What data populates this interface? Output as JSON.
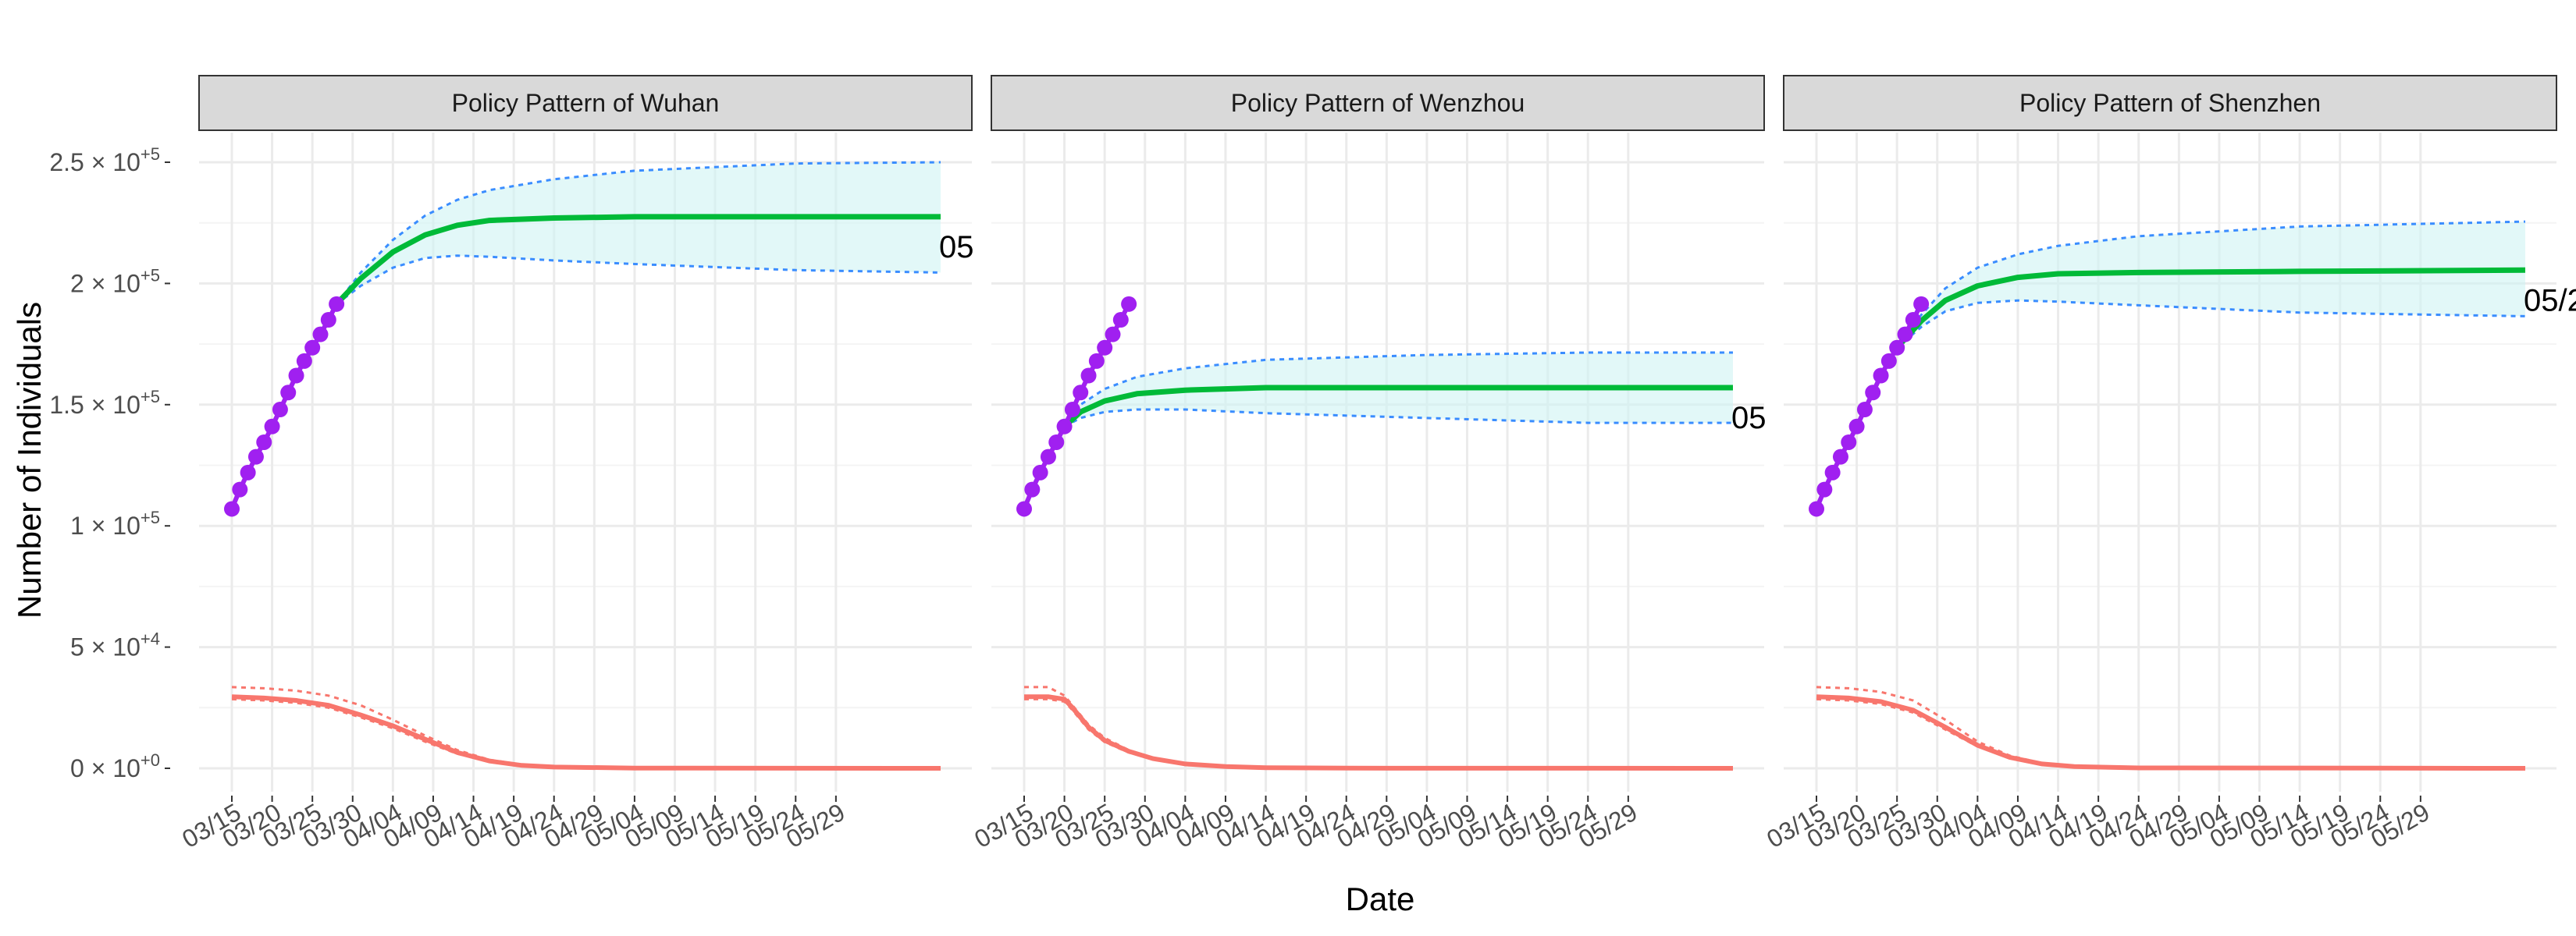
{
  "chart_data": {
    "type": "line",
    "xlabel": "Date",
    "ylabel": "Number of Individuals",
    "ylim": [
      0,
      250000
    ],
    "y_ticks": [
      0,
      50000,
      100000,
      150000,
      200000,
      250000
    ],
    "y_tick_labels": [
      {
        "mant": "0",
        "exp": "+0"
      },
      {
        "mant": "5",
        "exp": "+4"
      },
      {
        "mant": "1",
        "exp": "+5"
      },
      {
        "mant": "1.5",
        "exp": "+5"
      },
      {
        "mant": "2",
        "exp": "+5"
      },
      {
        "mant": "2.5",
        "exp": "+5"
      }
    ],
    "x_tick_labels": [
      "03/15",
      "03/20",
      "03/25",
      "03/30",
      "04/04",
      "04/09",
      "04/14",
      "04/19",
      "04/24",
      "04/29",
      "05/04",
      "05/09",
      "05/14",
      "05/19",
      "05/24",
      "05/29"
    ],
    "colors": {
      "observed": "#A020F0",
      "predicted": "#00BA38",
      "band_fill": "#CFF4F4",
      "band_line": "#3A8DFF",
      "active": "#F8766D",
      "strip_bg": "#D9D9D9",
      "grid": "#EBEBEB"
    },
    "panels": [
      {
        "title": "Policy Pattern of Wuhan",
        "end_label": "05",
        "observed": [
          [
            0,
            107000
          ],
          [
            1,
            115000
          ],
          [
            2,
            122000
          ],
          [
            3,
            128500
          ],
          [
            4,
            134500
          ],
          [
            5,
            141000
          ],
          [
            6,
            148000
          ],
          [
            7,
            155000
          ],
          [
            8,
            162000
          ],
          [
            9,
            168000
          ],
          [
            10,
            173500
          ],
          [
            11,
            179000
          ],
          [
            12,
            185000
          ],
          [
            13,
            191500
          ]
        ],
        "predicted": [
          [
            13,
            191500
          ],
          [
            16,
            202000
          ],
          [
            20,
            213000
          ],
          [
            24,
            220000
          ],
          [
            28,
            224000
          ],
          [
            32,
            226000
          ],
          [
            40,
            227000
          ],
          [
            50,
            227500
          ],
          [
            70,
            227500
          ],
          [
            88,
            227500
          ]
        ],
        "upper": [
          [
            13,
            191500
          ],
          [
            16,
            204500
          ],
          [
            20,
            218000
          ],
          [
            24,
            228000
          ],
          [
            28,
            234500
          ],
          [
            32,
            238500
          ],
          [
            40,
            243000
          ],
          [
            50,
            246500
          ],
          [
            70,
            249500
          ],
          [
            88,
            250000
          ]
        ],
        "lower": [
          [
            13,
            191500
          ],
          [
            16,
            199000
          ],
          [
            20,
            206500
          ],
          [
            24,
            210500
          ],
          [
            28,
            211500
          ],
          [
            32,
            211000
          ],
          [
            40,
            209500
          ],
          [
            50,
            208000
          ],
          [
            70,
            205500
          ],
          [
            88,
            204500
          ]
        ],
        "active": [
          [
            0,
            29500
          ],
          [
            4,
            29000
          ],
          [
            8,
            28000
          ],
          [
            12,
            26000
          ],
          [
            16,
            22000
          ],
          [
            20,
            17500
          ],
          [
            24,
            12000
          ],
          [
            28,
            6500
          ],
          [
            32,
            3000
          ],
          [
            36,
            1200
          ],
          [
            40,
            500
          ],
          [
            50,
            100
          ],
          [
            88,
            0
          ]
        ],
        "active_upper": [
          [
            0,
            33500
          ],
          [
            4,
            33000
          ],
          [
            8,
            32000
          ],
          [
            12,
            30000
          ],
          [
            16,
            26000
          ],
          [
            20,
            20000
          ],
          [
            24,
            13500
          ],
          [
            28,
            7500
          ],
          [
            32,
            3500
          ],
          [
            36,
            1500
          ],
          [
            40,
            600
          ],
          [
            50,
            150
          ],
          [
            88,
            0
          ]
        ],
        "active_lower": [
          [
            0,
            28500
          ],
          [
            4,
            28000
          ],
          [
            8,
            27000
          ],
          [
            12,
            25000
          ],
          [
            16,
            21000
          ],
          [
            20,
            16500
          ],
          [
            24,
            11000
          ],
          [
            28,
            6000
          ],
          [
            32,
            2800
          ],
          [
            36,
            1100
          ],
          [
            40,
            450
          ],
          [
            50,
            100
          ],
          [
            88,
            0
          ]
        ]
      },
      {
        "title": "Policy Pattern of Wenzhou",
        "end_label": "05",
        "observed": [
          [
            0,
            107000
          ],
          [
            1,
            115000
          ],
          [
            2,
            122000
          ],
          [
            3,
            128500
          ],
          [
            4,
            134500
          ],
          [
            5,
            141000
          ],
          [
            6,
            148000
          ],
          [
            7,
            155000
          ],
          [
            8,
            162000
          ],
          [
            9,
            168000
          ],
          [
            10,
            173500
          ],
          [
            11,
            179000
          ],
          [
            12,
            185000
          ],
          [
            13,
            191500
          ]
        ],
        "predicted": [
          [
            5,
            141000
          ],
          [
            7,
            147000
          ],
          [
            10,
            151500
          ],
          [
            14,
            154500
          ],
          [
            20,
            156000
          ],
          [
            30,
            157000
          ],
          [
            50,
            157000
          ],
          [
            70,
            157000
          ],
          [
            88,
            157000
          ]
        ],
        "upper": [
          [
            5,
            141000
          ],
          [
            7,
            150000
          ],
          [
            10,
            156500
          ],
          [
            14,
            161500
          ],
          [
            20,
            165000
          ],
          [
            30,
            168500
          ],
          [
            50,
            170500
          ],
          [
            70,
            171500
          ],
          [
            88,
            171500
          ]
        ],
        "lower": [
          [
            5,
            141000
          ],
          [
            7,
            144500
          ],
          [
            10,
            147000
          ],
          [
            14,
            148000
          ],
          [
            20,
            148000
          ],
          [
            30,
            146500
          ],
          [
            50,
            144500
          ],
          [
            70,
            142500
          ],
          [
            88,
            142500
          ]
        ],
        "active": [
          [
            0,
            29500
          ],
          [
            3,
            29500
          ],
          [
            5,
            28500
          ],
          [
            6,
            25000
          ],
          [
            8,
            17000
          ],
          [
            10,
            11500
          ],
          [
            13,
            7000
          ],
          [
            16,
            4000
          ],
          [
            20,
            1800
          ],
          [
            25,
            700
          ],
          [
            30,
            250
          ],
          [
            40,
            50
          ],
          [
            88,
            0
          ]
        ],
        "active_upper": [
          [
            0,
            33500
          ],
          [
            3,
            33500
          ],
          [
            5,
            30000
          ],
          [
            6,
            26000
          ],
          [
            8,
            18000
          ],
          [
            10,
            12500
          ],
          [
            13,
            7500
          ],
          [
            16,
            4300
          ],
          [
            20,
            2000
          ],
          [
            25,
            800
          ],
          [
            30,
            300
          ],
          [
            40,
            60
          ],
          [
            88,
            0
          ]
        ],
        "active_lower": [
          [
            0,
            28500
          ],
          [
            3,
            28500
          ],
          [
            5,
            27500
          ],
          [
            6,
            24000
          ],
          [
            8,
            16000
          ],
          [
            10,
            10800
          ],
          [
            13,
            6500
          ],
          [
            16,
            3700
          ],
          [
            20,
            1600
          ],
          [
            25,
            600
          ],
          [
            30,
            200
          ],
          [
            40,
            40
          ],
          [
            88,
            0
          ]
        ]
      },
      {
        "title": "Policy Pattern of Shenzhen",
        "end_label": "05/2",
        "observed": [
          [
            0,
            107000
          ],
          [
            1,
            115000
          ],
          [
            2,
            122000
          ],
          [
            3,
            128500
          ],
          [
            4,
            134500
          ],
          [
            5,
            141000
          ],
          [
            6,
            148000
          ],
          [
            7,
            155000
          ],
          [
            8,
            162000
          ],
          [
            9,
            168000
          ],
          [
            10,
            173500
          ],
          [
            11,
            179000
          ],
          [
            12,
            185000
          ],
          [
            13,
            191500
          ]
        ],
        "predicted": [
          [
            10,
            173500
          ],
          [
            13,
            184500
          ],
          [
            16,
            193000
          ],
          [
            20,
            199000
          ],
          [
            25,
            202500
          ],
          [
            30,
            204000
          ],
          [
            40,
            204500
          ],
          [
            60,
            205000
          ],
          [
            88,
            205500
          ]
        ],
        "upper": [
          [
            10,
            173500
          ],
          [
            13,
            187000
          ],
          [
            16,
            198000
          ],
          [
            20,
            206500
          ],
          [
            25,
            212000
          ],
          [
            30,
            215500
          ],
          [
            40,
            219500
          ],
          [
            60,
            223500
          ],
          [
            88,
            225500
          ]
        ],
        "lower": [
          [
            10,
            173500
          ],
          [
            13,
            182000
          ],
          [
            16,
            188500
          ],
          [
            20,
            192000
          ],
          [
            25,
            193000
          ],
          [
            30,
            192500
          ],
          [
            40,
            191000
          ],
          [
            60,
            188000
          ],
          [
            88,
            186500
          ]
        ],
        "active": [
          [
            0,
            29500
          ],
          [
            4,
            29000
          ],
          [
            8,
            27500
          ],
          [
            12,
            24000
          ],
          [
            16,
            17000
          ],
          [
            20,
            9500
          ],
          [
            24,
            4500
          ],
          [
            28,
            1800
          ],
          [
            32,
            700
          ],
          [
            40,
            150
          ],
          [
            88,
            0
          ]
        ],
        "active_upper": [
          [
            0,
            33500
          ],
          [
            4,
            33000
          ],
          [
            8,
            31500
          ],
          [
            12,
            28000
          ],
          [
            16,
            20000
          ],
          [
            20,
            11000
          ],
          [
            24,
            5200
          ],
          [
            28,
            2100
          ],
          [
            32,
            800
          ],
          [
            40,
            180
          ],
          [
            88,
            0
          ]
        ],
        "active_lower": [
          [
            0,
            28500
          ],
          [
            4,
            28000
          ],
          [
            8,
            26500
          ],
          [
            12,
            23000
          ],
          [
            16,
            16000
          ],
          [
            20,
            9000
          ],
          [
            24,
            4200
          ],
          [
            28,
            1600
          ],
          [
            32,
            650
          ],
          [
            40,
            130
          ],
          [
            88,
            0
          ]
        ]
      }
    ]
  }
}
